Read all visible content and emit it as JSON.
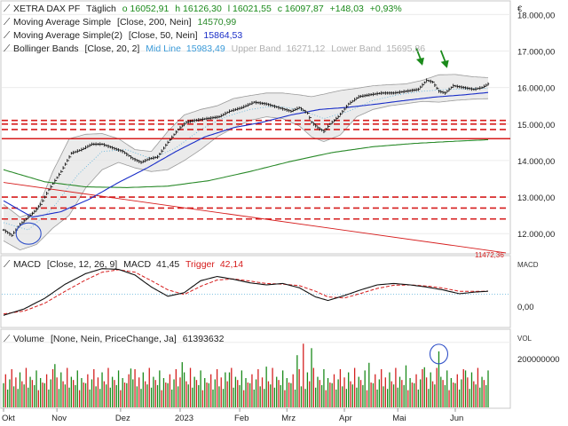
{
  "header": {
    "instrument": "XETRA DAX PF",
    "interval": "Täglich",
    "open": "o 16052,91",
    "high": "h 16126,30",
    "low": "l 16021,55",
    "close": "c 16097,87",
    "change": "+148,03",
    "change_pct": "+0,93%",
    "currency": "€"
  },
  "legend": {
    "sma200_label": "Moving Average Simple",
    "sma200_params": "[Close, 200, Nein]",
    "sma200_value": "14570,99",
    "sma50_label": "Moving Average Simple(2)",
    "sma50_params": "[Close, 50, Nein]",
    "sma50_value": "15864,53",
    "bb_label": "Bollinger Bands",
    "bb_params": "[Close, 20, 2]",
    "bb_mid_label": "Mid Line",
    "bb_mid_value": "15983,49",
    "bb_upper_label": "Upper Band",
    "bb_upper_value": "16271,12",
    "bb_lower_label": "Lower Band",
    "bb_lower_value": "15695,86",
    "trend_value": "11472,36"
  },
  "macd_panel": {
    "title": "MACD",
    "params": "[Close, 12, 26, 9]",
    "macd_label": "MACD",
    "macd_value": "41,45",
    "trigger_label": "Trigger",
    "trigger_value": "42,14",
    "axis_label": "MACD",
    "tick": "0,00"
  },
  "volume_panel": {
    "title": "Volume",
    "params": "[None, Nein, PriceChange, Ja]",
    "value": "61393632",
    "axis_label": "VOL",
    "tick": "200000000"
  },
  "colors": {
    "up": "#1a8a1a",
    "down": "#d42020",
    "price": "#111111",
    "sma200": "#2a8a2a",
    "sma50": "#1a2ec8",
    "band_fill": "#e4e4e4",
    "band_line": "#9a9a9a",
    "mid_line": "#5ab0d8",
    "support": "#d61c1c",
    "macd": "#111111",
    "trigger": "#d61c1c"
  },
  "chart_data": [
    {
      "type": "line",
      "name": "price",
      "title": "XETRA DAX PF",
      "x": [
        "Okt",
        "Nov",
        "Dez",
        "2023",
        "Feb",
        "Mrz",
        "Apr",
        "Mai",
        "Jun"
      ],
      "anchors": [
        [
          0,
          12100
        ],
        [
          4,
          11950
        ],
        [
          8,
          12250
        ],
        [
          14,
          12550
        ],
        [
          18,
          12800
        ],
        [
          22,
          13200
        ],
        [
          28,
          13700
        ],
        [
          33,
          14200
        ],
        [
          38,
          14300
        ],
        [
          43,
          14450
        ],
        [
          48,
          14450
        ],
        [
          53,
          14350
        ],
        [
          58,
          14250
        ],
        [
          63,
          14050
        ],
        [
          67,
          13950
        ],
        [
          71,
          14050
        ],
        [
          75,
          14100
        ],
        [
          80,
          14500
        ],
        [
          85,
          14850
        ],
        [
          89,
          15050
        ],
        [
          93,
          15100
        ],
        [
          99,
          15150
        ],
        [
          105,
          15200
        ],
        [
          110,
          15350
        ],
        [
          116,
          15450
        ],
        [
          122,
          15600
        ],
        [
          128,
          15550
        ],
        [
          134,
          15450
        ],
        [
          140,
          15350
        ],
        [
          144,
          15450
        ],
        [
          148,
          15300
        ],
        [
          150,
          15050
        ],
        [
          153,
          14900
        ],
        [
          156,
          14800
        ],
        [
          159,
          15000
        ],
        [
          163,
          15200
        ],
        [
          168,
          15550
        ],
        [
          173,
          15750
        ],
        [
          178,
          15800
        ],
        [
          184,
          15850
        ],
        [
          190,
          15850
        ],
        [
          196,
          15900
        ],
        [
          202,
          15950
        ],
        [
          206,
          16200
        ],
        [
          209,
          16150
        ],
        [
          212,
          15900
        ],
        [
          215,
          15850
        ],
        [
          219,
          16050
        ],
        [
          224,
          16000
        ],
        [
          229,
          15950
        ],
        [
          233,
          16000
        ],
        [
          236,
          16097
        ]
      ],
      "sma200": [
        [
          0,
          13750
        ],
        [
          20,
          13420
        ],
        [
          40,
          13280
        ],
        [
          60,
          13260
        ],
        [
          80,
          13300
        ],
        [
          100,
          13450
        ],
        [
          120,
          13700
        ],
        [
          140,
          13980
        ],
        [
          160,
          14220
        ],
        [
          180,
          14380
        ],
        [
          200,
          14470
        ],
        [
          220,
          14530
        ],
        [
          236,
          14571
        ]
      ],
      "sma50": [
        [
          0,
          12900
        ],
        [
          14,
          12450
        ],
        [
          28,
          12600
        ],
        [
          42,
          12950
        ],
        [
          56,
          13400
        ],
        [
          70,
          13800
        ],
        [
          84,
          14250
        ],
        [
          98,
          14650
        ],
        [
          112,
          14900
        ],
        [
          126,
          15050
        ],
        [
          140,
          15250
        ],
        [
          154,
          15400
        ],
        [
          168,
          15460
        ],
        [
          182,
          15550
        ],
        [
          196,
          15650
        ],
        [
          210,
          15740
        ],
        [
          224,
          15800
        ],
        [
          236,
          15865
        ]
      ],
      "bb_upper": [
        [
          0,
          12800
        ],
        [
          8,
          12450
        ],
        [
          16,
          12600
        ],
        [
          24,
          13700
        ],
        [
          32,
          14600
        ],
        [
          40,
          14720
        ],
        [
          48,
          14740
        ],
        [
          56,
          14600
        ],
        [
          64,
          14300
        ],
        [
          72,
          14250
        ],
        [
          80,
          14800
        ],
        [
          88,
          15250
        ],
        [
          96,
          15400
        ],
        [
          104,
          15500
        ],
        [
          112,
          15700
        ],
        [
          120,
          15780
        ],
        [
          128,
          15850
        ],
        [
          136,
          15850
        ],
        [
          144,
          15800
        ],
        [
          150,
          15750
        ],
        [
          156,
          15820
        ],
        [
          164,
          15920
        ],
        [
          172,
          15980
        ],
        [
          180,
          16050
        ],
        [
          188,
          16080
        ],
        [
          196,
          16100
        ],
        [
          204,
          16200
        ],
        [
          212,
          16350
        ],
        [
          220,
          16360
        ],
        [
          228,
          16300
        ],
        [
          236,
          16271
        ]
      ],
      "bb_lower": [
        [
          0,
          11800
        ],
        [
          8,
          11550
        ],
        [
          16,
          11700
        ],
        [
          24,
          12150
        ],
        [
          32,
          12500
        ],
        [
          40,
          13250
        ],
        [
          48,
          13750
        ],
        [
          56,
          13950
        ],
        [
          64,
          13800
        ],
        [
          72,
          13700
        ],
        [
          80,
          13750
        ],
        [
          88,
          14000
        ],
        [
          96,
          14300
        ],
        [
          104,
          14650
        ],
        [
          112,
          14900
        ],
        [
          120,
          15100
        ],
        [
          128,
          15200
        ],
        [
          136,
          15150
        ],
        [
          144,
          14950
        ],
        [
          150,
          14650
        ],
        [
          156,
          14520
        ],
        [
          164,
          14700
        ],
        [
          172,
          15200
        ],
        [
          180,
          15400
        ],
        [
          188,
          15500
        ],
        [
          196,
          15560
        ],
        [
          204,
          15620
        ],
        [
          212,
          15600
        ],
        [
          220,
          15650
        ],
        [
          228,
          15680
        ],
        [
          236,
          15696
        ]
      ],
      "bb_mid": [
        [
          0,
          12300
        ],
        [
          12,
          12100
        ],
        [
          24,
          12700
        ],
        [
          36,
          13600
        ],
        [
          48,
          14250
        ],
        [
          60,
          14300
        ],
        [
          72,
          14050
        ],
        [
          84,
          14350
        ],
        [
          96,
          14850
        ],
        [
          108,
          15200
        ],
        [
          120,
          15400
        ],
        [
          132,
          15500
        ],
        [
          144,
          15400
        ],
        [
          156,
          15150
        ],
        [
          168,
          15350
        ],
        [
          180,
          15650
        ],
        [
          192,
          15800
        ],
        [
          204,
          15900
        ],
        [
          216,
          15950
        ],
        [
          228,
          15970
        ],
        [
          236,
          15983
        ]
      ],
      "support_levels_dashed": [
        15100,
        15000,
        14850,
        13000,
        12700,
        12400
      ],
      "support_level_solid": 14600,
      "trendline": [
        [
          0,
          13400
        ],
        [
          236,
          11472
        ]
      ],
      "yticks": [
        12000,
        13000,
        14000,
        15000,
        16000,
        17000,
        18000
      ],
      "ylim": [
        11470,
        18350
      ],
      "arrows_at": [
        [
          204,
          16650
        ],
        [
          216,
          16580
        ]
      ],
      "circle_at": [
        7,
        12000
      ]
    },
    {
      "type": "line",
      "name": "MACD",
      "macd": [
        [
          0,
          -300
        ],
        [
          10,
          -210
        ],
        [
          20,
          -60
        ],
        [
          30,
          140
        ],
        [
          40,
          290
        ],
        [
          48,
          360
        ],
        [
          56,
          350
        ],
        [
          64,
          270
        ],
        [
          72,
          100
        ],
        [
          80,
          -30
        ],
        [
          88,
          20
        ],
        [
          96,
          190
        ],
        [
          104,
          250
        ],
        [
          112,
          210
        ],
        [
          120,
          160
        ],
        [
          128,
          130
        ],
        [
          136,
          150
        ],
        [
          144,
          90
        ],
        [
          152,
          -40
        ],
        [
          158,
          -90
        ],
        [
          166,
          -20
        ],
        [
          174,
          60
        ],
        [
          182,
          130
        ],
        [
          190,
          150
        ],
        [
          198,
          130
        ],
        [
          206,
          100
        ],
        [
          214,
          60
        ],
        [
          222,
          5
        ],
        [
          230,
          30
        ],
        [
          236,
          41
        ]
      ],
      "trigger": [
        [
          0,
          -280
        ],
        [
          10,
          -240
        ],
        [
          20,
          -130
        ],
        [
          30,
          40
        ],
        [
          40,
          200
        ],
        [
          48,
          310
        ],
        [
          56,
          345
        ],
        [
          64,
          310
        ],
        [
          72,
          190
        ],
        [
          80,
          60
        ],
        [
          88,
          -5
        ],
        [
          96,
          110
        ],
        [
          104,
          200
        ],
        [
          112,
          215
        ],
        [
          120,
          185
        ],
        [
          128,
          150
        ],
        [
          136,
          140
        ],
        [
          144,
          120
        ],
        [
          152,
          40
        ],
        [
          158,
          -40
        ],
        [
          166,
          -55
        ],
        [
          174,
          10
        ],
        [
          182,
          80
        ],
        [
          190,
          125
        ],
        [
          198,
          130
        ],
        [
          206,
          115
        ],
        [
          214,
          85
        ],
        [
          222,
          40
        ],
        [
          230,
          38
        ],
        [
          236,
          42
        ]
      ],
      "yticks": [
        0
      ],
      "ylim": [
        -460,
        520
      ]
    },
    {
      "type": "bar",
      "name": "Volume",
      "pattern": [
        0.38,
        0.52,
        0.28,
        0.44,
        0.6,
        0.33,
        0.47,
        0.29,
        0.55,
        0.41,
        0.36,
        0.62,
        0.31,
        0.48,
        0.43,
        0.35,
        0.58,
        0.27,
        0.46,
        0.39
      ],
      "colors": [
        "up",
        "down",
        "up",
        "up",
        "down",
        "up",
        "down",
        "up",
        "up",
        "down",
        "up",
        "down",
        "up",
        "up",
        "down",
        "up",
        "up",
        "down",
        "up",
        "down"
      ],
      "spikes": [
        [
          25,
          0.68
        ],
        [
          62,
          0.61
        ],
        [
          87,
          0.71
        ],
        [
          110,
          0.55
        ],
        [
          128,
          0.64
        ],
        [
          143,
          0.82
        ],
        [
          146,
          1.0
        ],
        [
          150,
          0.93
        ],
        [
          156,
          0.6
        ],
        [
          178,
          0.7
        ],
        [
          196,
          0.66
        ],
        [
          205,
          0.63
        ],
        [
          212,
          0.88
        ],
        [
          225,
          0.58
        ]
      ],
      "circle_at": 212,
      "yticks": [
        200000000
      ],
      "ylim": [
        0,
        235000000
      ]
    }
  ]
}
